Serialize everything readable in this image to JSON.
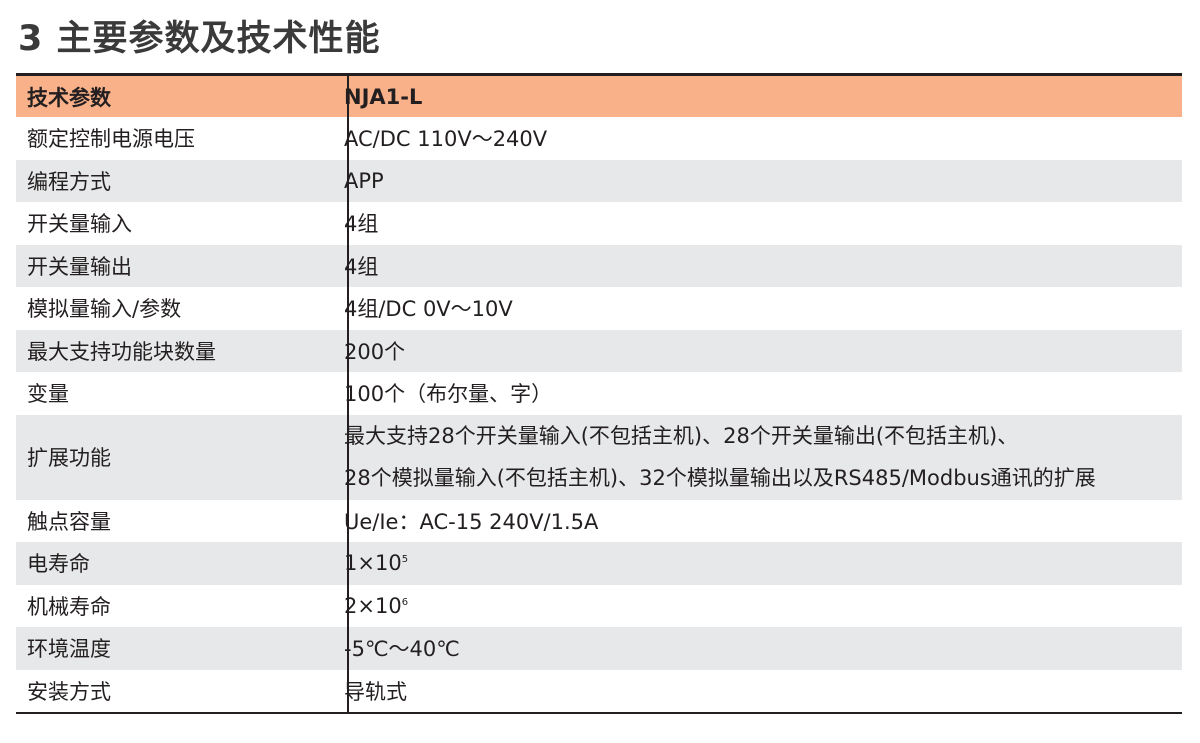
{
  "title": "3 主要参数及技术性能",
  "table": {
    "header": {
      "param": "技术参数",
      "value": "NJA1-L"
    },
    "rows": [
      {
        "param": "额定控制电源电压",
        "value": "AC/DC 110V～240V"
      },
      {
        "param": "编程方式",
        "value": "APP"
      },
      {
        "param": "开关量输入",
        "value": "4组"
      },
      {
        "param": "开关量输出",
        "value": "4组"
      },
      {
        "param": "模拟量输入/参数",
        "value": "4组/DC 0V～10V"
      },
      {
        "param": "最大支持功能块数量",
        "value": "200个"
      },
      {
        "param": "变量",
        "value": "100个（布尔量、字）"
      },
      {
        "param": "扩展功能",
        "value_line1": "最大支持28个开关量输入(不包括主机)、28个开关量输出(不包括主机)、",
        "value_line2": "28个模拟量输入(不包括主机)、32个模拟量输出以及RS485/Modbus通讯的扩展"
      },
      {
        "param": "触点容量",
        "value": "Ue/Ie：AC-15 240V/1.5A"
      },
      {
        "param": "电寿命",
        "value_base": "1×10",
        "value_exp": "5"
      },
      {
        "param": "机械寿命",
        "value_base": "2×10",
        "value_exp": "6"
      },
      {
        "param": "环境温度",
        "value": "-5℃～40℃"
      },
      {
        "param": "安装方式",
        "value": "导轨式"
      }
    ]
  }
}
